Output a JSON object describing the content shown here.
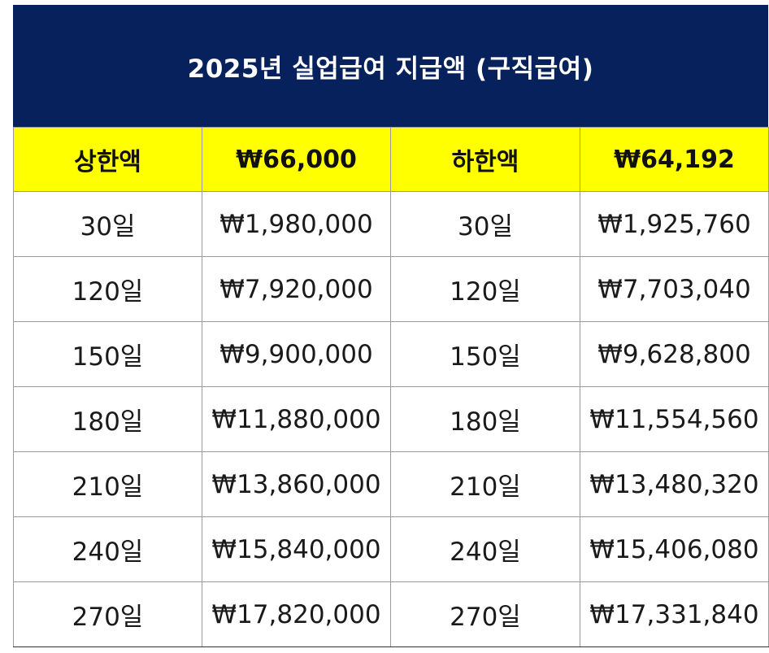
{
  "title": "2025년 실업급여 지급액 (구직급여)",
  "header": {
    "upper_label": "상한액",
    "upper_value": "₩66,000",
    "lower_label": "하한액",
    "lower_value": "₩64,192"
  },
  "rows": [
    {
      "days": "30일",
      "upper": "₩1,980,000",
      "days2": "30일",
      "lower": "₩1,925,760"
    },
    {
      "days": "120일",
      "upper": "₩7,920,000",
      "days2": "120일",
      "lower": "₩7,703,040"
    },
    {
      "days": "150일",
      "upper": "₩9,900,000",
      "days2": "150일",
      "lower": "₩9,628,800"
    },
    {
      "days": "180일",
      "upper": "₩11,880,000",
      "days2": "180일",
      "lower": "₩11,554,560"
    },
    {
      "days": "210일",
      "upper": "₩13,860,000",
      "days2": "210일",
      "lower": "₩13,480,320"
    },
    {
      "days": "240일",
      "upper": "₩15,840,000",
      "days2": "240일",
      "lower": "₩15,406,080"
    },
    {
      "days": "270일",
      "upper": "₩17,820,000",
      "days2": "270일",
      "lower": "₩17,331,840"
    }
  ],
  "colors": {
    "title_background": "#06215c",
    "header_background": "#ffff00"
  }
}
